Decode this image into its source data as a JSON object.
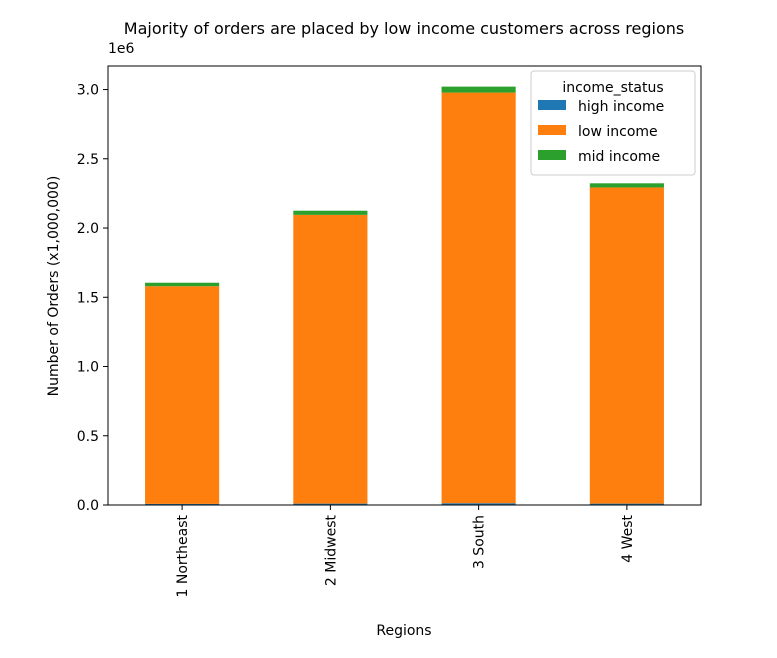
{
  "chart_data": {
    "type": "bar",
    "stacked": true,
    "title": "Majority of orders are placed by low income customers across regions",
    "xlabel": "Regions",
    "ylabel": "Number of Orders (x1,000,000)",
    "y_offset_text": "1e6",
    "categories": [
      "1 Northeast",
      "2 Midwest",
      "3 South",
      "4 West"
    ],
    "series": [
      {
        "name": "high income",
        "color": "#1f77b4",
        "values": [
          8000,
          10000,
          13000,
          10000
        ]
      },
      {
        "name": "low income",
        "color": "#ff7f0e",
        "values": [
          1572000,
          2085000,
          2965000,
          2283000
        ]
      },
      {
        "name": "mid income",
        "color": "#2ca02c",
        "values": [
          25000,
          30000,
          43000,
          30000
        ]
      }
    ],
    "ylim": [
      0,
      3170000
    ],
    "yticks": [
      0,
      500000,
      1000000,
      1500000,
      2000000,
      2500000,
      3000000
    ],
    "ytick_labels": [
      "0.0",
      "0.5",
      "1.0",
      "1.5",
      "2.0",
      "2.5",
      "3.0"
    ],
    "legend": {
      "title": "income_status",
      "placement": "top-right"
    },
    "grid": false
  }
}
